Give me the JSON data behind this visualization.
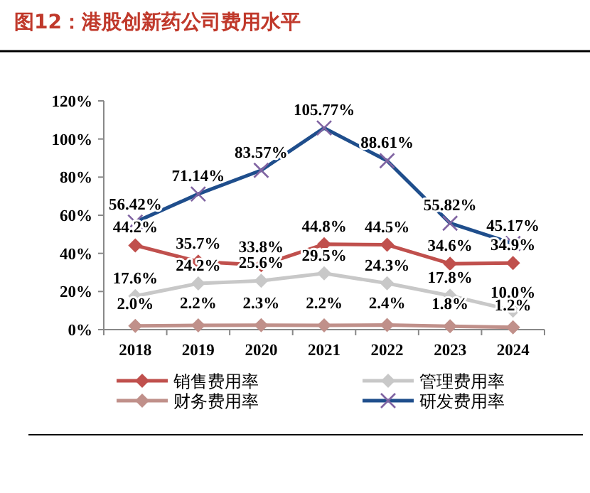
{
  "chart_data": {
    "type": "line",
    "title": "图12：港股创新药公司费用水平",
    "categories": [
      "2018",
      "2019",
      "2020",
      "2021",
      "2022",
      "2023",
      "2024"
    ],
    "series": [
      {
        "name": "销售费用率",
        "color": "#c0504d",
        "marker": "diamond",
        "values": [
          44.2,
          35.7,
          33.8,
          44.8,
          44.5,
          34.6,
          34.9
        ],
        "value_labels": [
          "44.2%",
          "35.7%",
          "33.8%",
          "44.8%",
          "44.5%",
          "34.6%",
          "34.9%"
        ]
      },
      {
        "name": "管理费用率",
        "color": "#c8c8c8",
        "marker": "diamond",
        "values": [
          17.6,
          24.2,
          25.6,
          29.5,
          24.3,
          17.8,
          10.0
        ],
        "value_labels": [
          "17.6%",
          "24.2%",
          "25.6%",
          "29.5%",
          "24.3%",
          "17.8%",
          "10.0%"
        ]
      },
      {
        "name": "财务费用率",
        "color": "#c0908a",
        "marker": "diamond",
        "values": [
          2.0,
          2.2,
          2.3,
          2.2,
          2.4,
          1.8,
          1.2
        ],
        "value_labels": [
          "2.0%",
          "2.2%",
          "2.3%",
          "2.2%",
          "2.4%",
          "1.8%",
          "1.2%"
        ]
      },
      {
        "name": "研发费用率",
        "color": "#1f4e8c",
        "marker": "cross",
        "values": [
          56.42,
          71.14,
          83.57,
          105.77,
          88.61,
          55.82,
          45.17
        ],
        "value_labels": [
          "56.42%",
          "71.14%",
          "83.57%",
          "105.77%",
          "88.61%",
          "55.82%",
          "45.17%"
        ]
      }
    ],
    "ylim": [
      0,
      120
    ],
    "yticks": [
      {
        "value": 0,
        "label": "0%"
      },
      {
        "value": 20,
        "label": "20%"
      },
      {
        "value": 40,
        "label": "40%"
      },
      {
        "value": 60,
        "label": "60%"
      },
      {
        "value": 80,
        "label": "80%"
      },
      {
        "value": 100,
        "label": "100%"
      },
      {
        "value": 120,
        "label": "120%"
      }
    ],
    "grid": false,
    "legend": "bottom",
    "line_style": "solid"
  }
}
